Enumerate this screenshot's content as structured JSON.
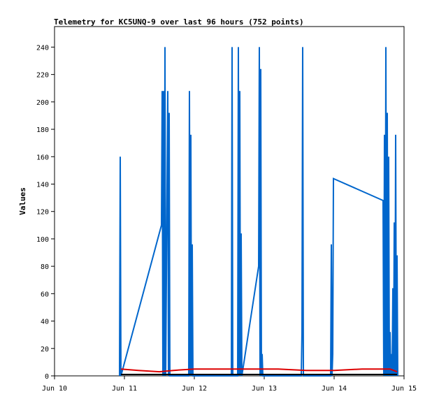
{
  "chart_data": {
    "type": "line",
    "title": "Telemetry for KC5UNQ-9 over last 96 hours (752 points)",
    "xlabel": "",
    "ylabel": "Values",
    "xlim": [
      "Jun 10",
      "Jun 15"
    ],
    "ylim": [
      0,
      255
    ],
    "x_ticks": [
      "Jun 10",
      "Jun 11",
      "Jun 12",
      "Jun 13",
      "Jun 14",
      "Jun 15"
    ],
    "y_ticks": [
      0,
      20,
      40,
      60,
      80,
      100,
      120,
      140,
      160,
      180,
      200,
      220,
      240
    ],
    "grid": false,
    "legend": "none",
    "series": [
      {
        "color": "#0066cc",
        "points": [
          [
            10.93,
            0
          ],
          [
            10.94,
            160
          ],
          [
            10.95,
            0
          ],
          [
            11.53,
            110
          ],
          [
            11.54,
            208
          ],
          [
            11.55,
            0
          ],
          [
            11.56,
            208
          ],
          [
            11.57,
            0
          ],
          [
            11.58,
            240
          ],
          [
            11.59,
            0
          ],
          [
            11.62,
            208
          ],
          [
            11.63,
            0
          ],
          [
            11.64,
            192
          ],
          [
            11.65,
            0
          ],
          [
            11.92,
            0
          ],
          [
            11.93,
            208
          ],
          [
            11.94,
            0
          ],
          [
            11.95,
            176
          ],
          [
            11.96,
            0
          ],
          [
            11.97,
            96
          ],
          [
            11.98,
            0
          ],
          [
            12.53,
            0
          ],
          [
            12.54,
            240
          ],
          [
            12.55,
            0
          ],
          [
            12.62,
            0
          ],
          [
            12.63,
            240
          ],
          [
            12.64,
            0
          ],
          [
            12.65,
            208
          ],
          [
            12.66,
            0
          ],
          [
            12.67,
            104
          ],
          [
            12.68,
            0
          ],
          [
            12.92,
            80
          ],
          [
            12.93,
            240
          ],
          [
            12.94,
            0
          ],
          [
            12.95,
            224
          ],
          [
            12.96,
            0
          ],
          [
            12.97,
            16
          ],
          [
            12.98,
            0
          ],
          [
            13.53,
            0
          ],
          [
            13.54,
            32
          ],
          [
            13.55,
            240
          ],
          [
            13.56,
            0
          ],
          [
            13.95,
            0
          ],
          [
            13.96,
            96
          ],
          [
            13.97,
            0
          ],
          [
            13.98,
            16
          ],
          [
            13.99,
            144
          ],
          [
            14.7,
            128
          ],
          [
            14.71,
            0
          ],
          [
            14.72,
            176
          ],
          [
            14.73,
            0
          ],
          [
            14.74,
            240
          ],
          [
            14.75,
            0
          ],
          [
            14.76,
            192
          ],
          [
            14.77,
            0
          ],
          [
            14.78,
            160
          ],
          [
            14.79,
            0
          ],
          [
            14.8,
            32
          ],
          [
            14.81,
            0
          ],
          [
            14.82,
            16
          ],
          [
            14.83,
            0
          ],
          [
            14.84,
            64
          ],
          [
            14.85,
            0
          ],
          [
            14.86,
            112
          ],
          [
            14.87,
            0
          ],
          [
            14.88,
            176
          ],
          [
            14.89,
            0
          ],
          [
            14.9,
            88
          ],
          [
            14.91,
            0
          ]
        ]
      },
      {
        "color": "#dd0000",
        "points": [
          [
            10.95,
            5
          ],
          [
            11.2,
            4
          ],
          [
            11.5,
            3
          ],
          [
            11.7,
            4
          ],
          [
            12.0,
            5
          ],
          [
            12.3,
            5
          ],
          [
            12.6,
            5
          ],
          [
            12.9,
            5
          ],
          [
            13.2,
            5
          ],
          [
            13.6,
            4
          ],
          [
            14.0,
            4
          ],
          [
            14.4,
            5
          ],
          [
            14.8,
            5
          ],
          [
            14.9,
            3
          ]
        ]
      },
      {
        "color": "#000000",
        "points": [
          [
            10.95,
            1
          ],
          [
            14.9,
            1
          ]
        ]
      }
    ]
  }
}
